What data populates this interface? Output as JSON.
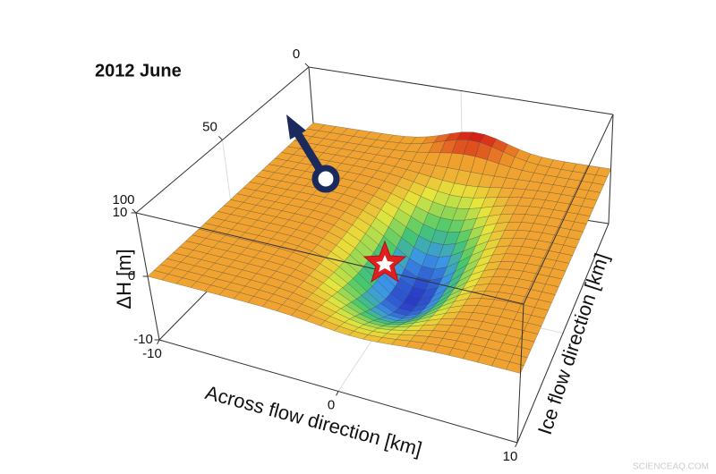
{
  "chart_data": {
    "type": "surface",
    "title": "2012 June",
    "xlabel": "Across flow direction [km]",
    "ylabel": "Ice flow direction [km]",
    "zlabel": "ΔH [m]",
    "xlim": [
      -10,
      10
    ],
    "xticks": [
      -10,
      0,
      10
    ],
    "ylim": [
      0,
      100
    ],
    "yticks": [
      0,
      50,
      100
    ],
    "zlim": [
      -10,
      10
    ],
    "zticks": [
      -10,
      0,
      10
    ],
    "grid": true,
    "watermark": "SCIENCEAQ.COM"
  }
}
